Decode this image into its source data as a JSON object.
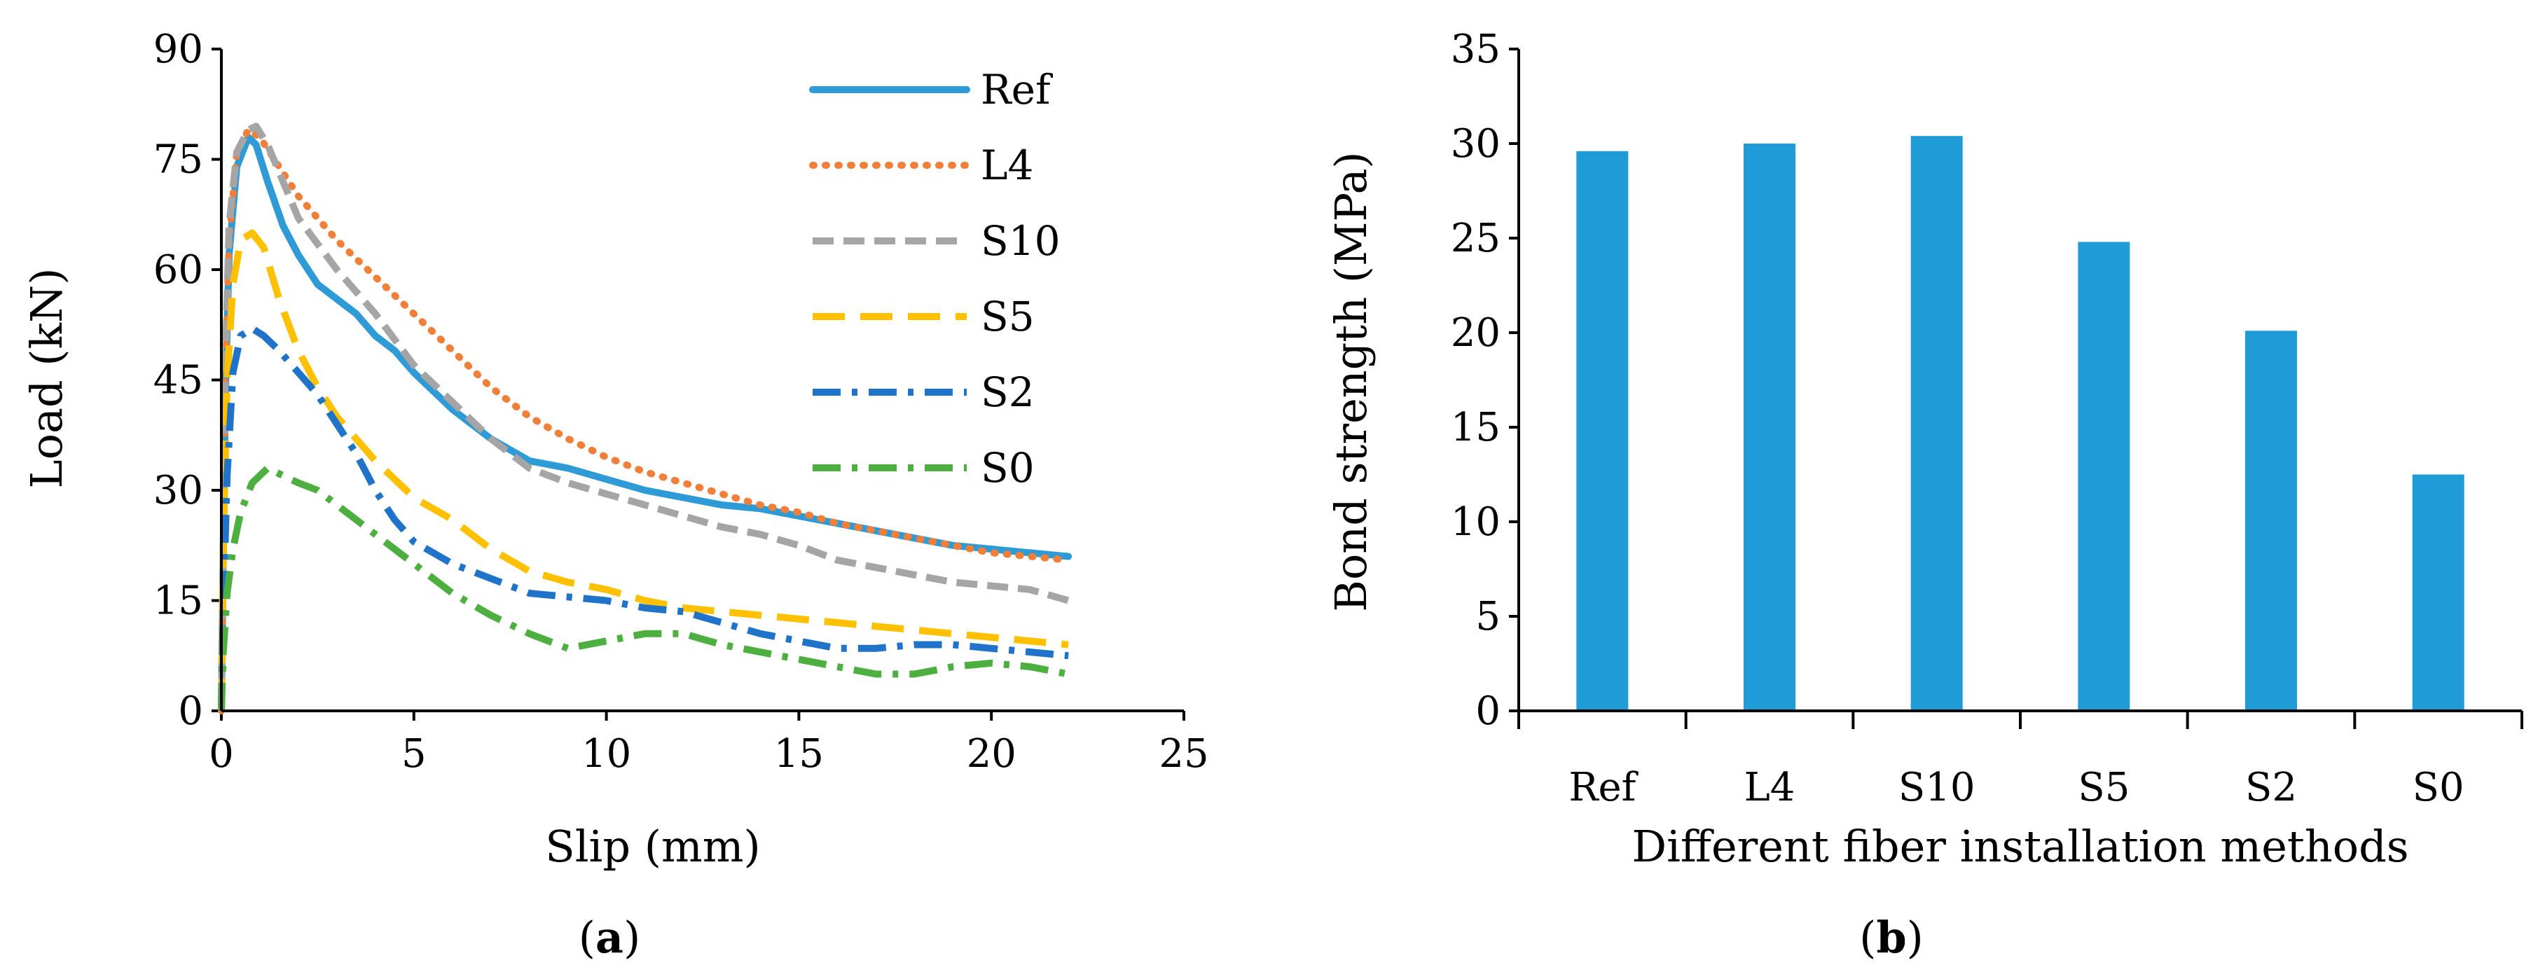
{
  "panels": {
    "a": {
      "caption_open": "(",
      "caption_letter": "a",
      "caption_close": ")"
    },
    "b": {
      "caption_open": "(",
      "caption_letter": "b",
      "caption_close": ")"
    }
  },
  "chart_data": [
    {
      "type": "line",
      "xlabel": "Slip (mm)",
      "ylabel": "Load (kN)",
      "xlim": [
        0,
        25
      ],
      "ylim": [
        0,
        90
      ],
      "xticks": [
        "0",
        "5",
        "10",
        "15",
        "20",
        "25"
      ],
      "yticks": [
        "0",
        "15",
        "30",
        "45",
        "60",
        "75",
        "90"
      ],
      "grid": false,
      "legend_position": "top-right",
      "series": [
        {
          "name": "Ref",
          "color": "#2E9AD6",
          "dash": "solid",
          "points": [
            [
              0,
              0
            ],
            [
              0.1,
              42
            ],
            [
              0.2,
              62
            ],
            [
              0.4,
              74
            ],
            [
              0.7,
              78
            ],
            [
              0.9,
              77
            ],
            [
              1.2,
              72
            ],
            [
              1.6,
              66
            ],
            [
              2,
              62
            ],
            [
              2.5,
              58
            ],
            [
              3,
              56
            ],
            [
              3.5,
              54
            ],
            [
              4,
              51
            ],
            [
              4.5,
              49
            ],
            [
              5,
              46
            ],
            [
              6,
              41
            ],
            [
              7,
              37
            ],
            [
              8,
              34
            ],
            [
              9,
              33
            ],
            [
              10,
              31.5
            ],
            [
              11,
              30
            ],
            [
              12,
              29
            ],
            [
              13,
              28
            ],
            [
              14,
              27.5
            ],
            [
              15,
              26.5
            ],
            [
              16,
              25.5
            ],
            [
              17,
              24.5
            ],
            [
              18,
              23.5
            ],
            [
              19,
              22.5
            ],
            [
              20,
              22
            ],
            [
              21,
              21.5
            ],
            [
              22,
              21
            ]
          ]
        },
        {
          "name": "L4",
          "color": "#F07F3A",
          "dash": "dotted",
          "points": [
            [
              0,
              0
            ],
            [
              0.1,
              45
            ],
            [
              0.2,
              64
            ],
            [
              0.4,
              76
            ],
            [
              0.7,
              79
            ],
            [
              1,
              78
            ],
            [
              1.5,
              74
            ],
            [
              2,
              70
            ],
            [
              3,
              64
            ],
            [
              4,
              59
            ],
            [
              5,
              54
            ],
            [
              6,
              49
            ],
            [
              7,
              44
            ],
            [
              8,
              40
            ],
            [
              9,
              37
            ],
            [
              10,
              34.5
            ],
            [
              11,
              32.5
            ],
            [
              12,
              31
            ],
            [
              13,
              29.5
            ],
            [
              14,
              28
            ],
            [
              15,
              27
            ],
            [
              16,
              25.5
            ],
            [
              17,
              24.5
            ],
            [
              18,
              23.5
            ],
            [
              19,
              22.5
            ],
            [
              20,
              21.5
            ],
            [
              21,
              21
            ],
            [
              22,
              20.5
            ]
          ]
        },
        {
          "name": "S10",
          "color": "#A5A5A5",
          "dash": "dashed",
          "points": [
            [
              0,
              0
            ],
            [
              0.1,
              46
            ],
            [
              0.2,
              66
            ],
            [
              0.4,
              76
            ],
            [
              0.7,
              79
            ],
            [
              0.9,
              79.5
            ],
            [
              1.2,
              77
            ],
            [
              1.6,
              72
            ],
            [
              2,
              67
            ],
            [
              3,
              60
            ],
            [
              4,
              54
            ],
            [
              5,
              47
            ],
            [
              6,
              42
            ],
            [
              7,
              37
            ],
            [
              8,
              33
            ],
            [
              9,
              31
            ],
            [
              10,
              29.5
            ],
            [
              11,
              28
            ],
            [
              12,
              26.5
            ],
            [
              13,
              25
            ],
            [
              14,
              24
            ],
            [
              15,
              22.5
            ],
            [
              16,
              20.5
            ],
            [
              17,
              19.5
            ],
            [
              18,
              18.5
            ],
            [
              19,
              17.5
            ],
            [
              20,
              17
            ],
            [
              21,
              16.5
            ],
            [
              22,
              15
            ]
          ]
        },
        {
          "name": "S5",
          "color": "#FFC000",
          "dash": "longdash",
          "points": [
            [
              0,
              0
            ],
            [
              0.05,
              22
            ],
            [
              0.15,
              45
            ],
            [
              0.3,
              58
            ],
            [
              0.5,
              64
            ],
            [
              0.8,
              65
            ],
            [
              1.1,
              63
            ],
            [
              1.5,
              56
            ],
            [
              2,
              49
            ],
            [
              2.5,
              44
            ],
            [
              3,
              40
            ],
            [
              4,
              34
            ],
            [
              5,
              29
            ],
            [
              6,
              26
            ],
            [
              7,
              22
            ],
            [
              8,
              19
            ],
            [
              9,
              17.5
            ],
            [
              10,
              16.5
            ],
            [
              11,
              15
            ],
            [
              12,
              14
            ],
            [
              13,
              13.5
            ],
            [
              14,
              13
            ],
            [
              15,
              12.5
            ],
            [
              16,
              12
            ],
            [
              17,
              11.5
            ],
            [
              18,
              11
            ],
            [
              19,
              10.5
            ],
            [
              20,
              10
            ],
            [
              21,
              9.5
            ],
            [
              22,
              9
            ]
          ]
        },
        {
          "name": "S2",
          "color": "#1F73C8",
          "dash": "dashdot",
          "points": [
            [
              0,
              0
            ],
            [
              0.05,
              14
            ],
            [
              0.15,
              32
            ],
            [
              0.3,
              46
            ],
            [
              0.5,
              51
            ],
            [
              0.8,
              52
            ],
            [
              1.1,
              51
            ],
            [
              1.5,
              49
            ],
            [
              2,
              46
            ],
            [
              2.5,
              43
            ],
            [
              3,
              39
            ],
            [
              3.5,
              35
            ],
            [
              4,
              30
            ],
            [
              4.5,
              26
            ],
            [
              5,
              23
            ],
            [
              6,
              20
            ],
            [
              7,
              18
            ],
            [
              8,
              16
            ],
            [
              9,
              15.5
            ],
            [
              10,
              15
            ],
            [
              11,
              14
            ],
            [
              12,
              13.5
            ],
            [
              13,
              12
            ],
            [
              14,
              10.5
            ],
            [
              15,
              9.5
            ],
            [
              16,
              8.5
            ],
            [
              17,
              8.5
            ],
            [
              18,
              9
            ],
            [
              19,
              9
            ],
            [
              20,
              8.5
            ],
            [
              21,
              8
            ],
            [
              22,
              7.5
            ]
          ]
        },
        {
          "name": "S0",
          "color": "#4CAF3F",
          "dash": "dashdot",
          "points": [
            [
              0,
              0
            ],
            [
              0.05,
              8
            ],
            [
              0.15,
              16
            ],
            [
              0.3,
              22
            ],
            [
              0.5,
              27
            ],
            [
              0.8,
              31
            ],
            [
              1.2,
              33
            ],
            [
              1.6,
              32
            ],
            [
              2,
              31
            ],
            [
              2.5,
              30
            ],
            [
              3,
              28
            ],
            [
              3.5,
              26
            ],
            [
              4,
              24
            ],
            [
              4.5,
              22
            ],
            [
              5,
              20
            ],
            [
              6,
              16
            ],
            [
              7,
              13
            ],
            [
              8,
              10.5
            ],
            [
              9,
              8.5
            ],
            [
              10,
              9.5
            ],
            [
              11,
              10.5
            ],
            [
              12,
              10.5
            ],
            [
              13,
              9
            ],
            [
              14,
              8
            ],
            [
              15,
              7
            ],
            [
              16,
              6
            ],
            [
              17,
              5
            ],
            [
              18,
              5
            ],
            [
              19,
              6
            ],
            [
              20,
              6.5
            ],
            [
              21,
              6
            ],
            [
              22,
              5
            ]
          ]
        }
      ]
    },
    {
      "type": "bar",
      "xlabel": "Different fiber installation methods",
      "ylabel": "Bond strength  (MPa)",
      "ylim": [
        0,
        35
      ],
      "yticks": [
        "0",
        "5",
        "10",
        "15",
        "20",
        "25",
        "30",
        "35"
      ],
      "grid": false,
      "bar_color": "#1F9BD7",
      "categories": [
        "Ref",
        "L4",
        "S10",
        "S5",
        "S2",
        "S0"
      ],
      "values": [
        29.6,
        30.0,
        30.4,
        24.8,
        20.1,
        12.5
      ]
    }
  ]
}
